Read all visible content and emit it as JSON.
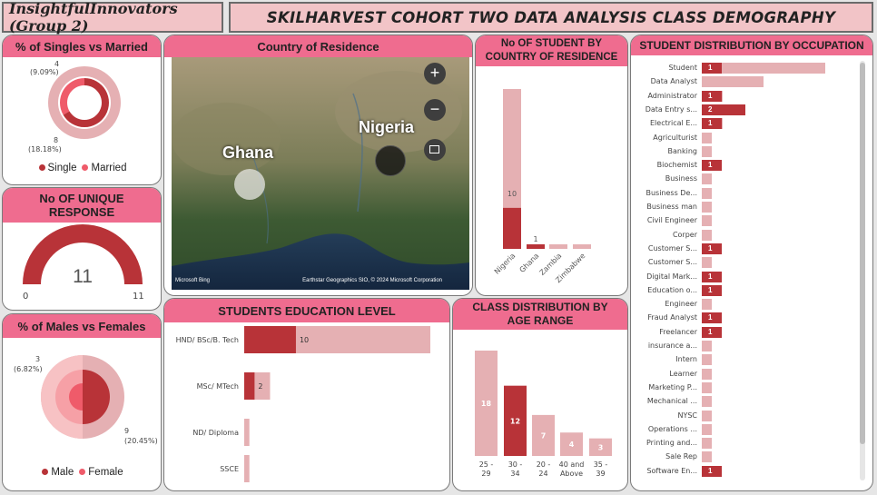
{
  "header": {
    "group": "InsightfulInnovators (Group 2)",
    "title": "SKILHARVEST COHORT TWO DATA ANALYSIS CLASS DEMOGRAPHY"
  },
  "colors": {
    "dark": "#b83338",
    "light": "#e5b0b3",
    "medium": "#ef5b6a",
    "header": "#ef6c8f"
  },
  "marital": {
    "title": "% of Singles vs Married",
    "married_label": "4",
    "married_pct": "(9.09%)",
    "single_label": "8",
    "single_pct": "(18.18%)",
    "legend_single": "Single",
    "legend_married": "Married"
  },
  "unique": {
    "title": "No OF UNIQUE RESPONSE",
    "value": "11",
    "min": "0",
    "max": "11"
  },
  "gender": {
    "title": "% of Males vs Females",
    "female_label": "3",
    "female_pct": "(6.82%)",
    "male_label": "9",
    "male_pct": "(20.45%)",
    "legend_male": "Male",
    "legend_female": "Female"
  },
  "map": {
    "title": "Country of Residence",
    "label_ghana": "Ghana",
    "label_nigeria": "Nigeria",
    "credit": "Earthstar Geographics SIO, © 2024 Microsoft Corporation",
    "brand": "Microsoft Bing",
    "zoom_in": "+",
    "zoom_out": "−"
  },
  "education": {
    "title": "STUDENTS EDUCATION LEVEL"
  },
  "age": {
    "title": "CLASS DISTRIBUTION BY AGE RANGE"
  },
  "country_chart": {
    "title": "No OF STUDENT BY COUNTRY OF RESIDENCE"
  },
  "occupation": {
    "title": "STUDENT DISTRIBUTION BY OCCUPATION"
  },
  "chart_data": [
    {
      "type": "pie",
      "title": "% of Singles vs Married",
      "categories": [
        "Single",
        "Married"
      ],
      "values": [
        8,
        4
      ],
      "percent_labels": [
        "(18.18%)",
        "(9.09%)"
      ]
    },
    {
      "type": "gauge",
      "title": "No OF UNIQUE RESPONSE",
      "value": 11,
      "min": 0,
      "max": 11
    },
    {
      "type": "pie",
      "title": "% of Males vs Females",
      "categories": [
        "Male",
        "Female"
      ],
      "values": [
        9,
        3
      ],
      "percent_labels": [
        "(20.45%)",
        "(6.82%)"
      ]
    },
    {
      "type": "bar",
      "title": "STUDENTS EDUCATION LEVEL",
      "orientation": "horizontal",
      "categories": [
        "HND/ BSc/B. Tech",
        "MSc/ MTech",
        "ND/ Diploma",
        "SSCE"
      ],
      "series": [
        {
          "values": [
            10,
            2,
            0,
            0
          ],
          "color": "#b83338"
        },
        {
          "values": [
            36,
            5,
            1,
            1
          ],
          "color": "#e5b0b3"
        }
      ],
      "data_labels": [
        "10",
        "2",
        "",
        ""
      ]
    },
    {
      "type": "bar",
      "title": "CLASS DISTRIBUTION BY AGE RANGE",
      "categories": [
        "25 - 29",
        "30 - 34",
        "20 - 24",
        "40 and Above",
        "35 - 39"
      ],
      "values": [
        18,
        12,
        7,
        4,
        3
      ],
      "highlight_index": 1,
      "data_labels": [
        "18",
        "12",
        "7",
        "4",
        "3"
      ]
    },
    {
      "type": "bar",
      "title": "No OF STUDENT BY COUNTRY OF RESIDENCE",
      "categories": [
        "Nigeria",
        "Ghana",
        "Zambia",
        "Zimbabwe"
      ],
      "series": [
        {
          "values": [
            10,
            1,
            0,
            0
          ],
          "color": "#b83338"
        },
        {
          "values": [
            39,
            1,
            1,
            1
          ],
          "color": "#e5b0b3"
        }
      ],
      "data_labels": [
        "10",
        "1",
        "",
        ""
      ]
    },
    {
      "type": "bar",
      "title": "STUDENT DISTRIBUTION BY OCCUPATION",
      "orientation": "horizontal",
      "categories": [
        "Student",
        "Data Analyst",
        "Administrator",
        "Data Entry s...",
        "Electrical E...",
        "Agriculturist",
        "Banking",
        "Biochemist",
        "Business",
        "Business De...",
        "Business man",
        "Civil Engineer",
        "Corper",
        "Customer S...",
        "Customer S...",
        "Digital Mark...",
        "Education o...",
        "Engineer",
        "Fraud Analyst",
        "Freelancer",
        "insurance a...",
        "Intern",
        "Learner",
        "Marketing P...",
        "Mechanical ...",
        "NYSC",
        "Operations ...",
        "Printing and...",
        "Sale Rep",
        "Software En..."
      ],
      "series": [
        {
          "values": [
            1,
            0,
            1,
            2,
            1,
            0,
            0,
            1,
            0,
            0,
            0,
            0,
            0,
            1,
            0,
            1,
            1,
            0,
            1,
            1,
            0,
            0,
            0,
            0,
            0,
            0,
            0,
            0,
            0,
            1
          ],
          "color": "#b83338"
        },
        {
          "values": [
            12,
            6,
            2,
            2,
            2,
            1,
            1,
            1,
            1,
            1,
            1,
            1,
            1,
            1,
            1,
            1,
            1,
            1,
            1,
            1,
            1,
            1,
            1,
            1,
            1,
            1,
            1,
            1,
            1,
            1
          ],
          "color": "#e5b0b3"
        }
      ]
    }
  ]
}
